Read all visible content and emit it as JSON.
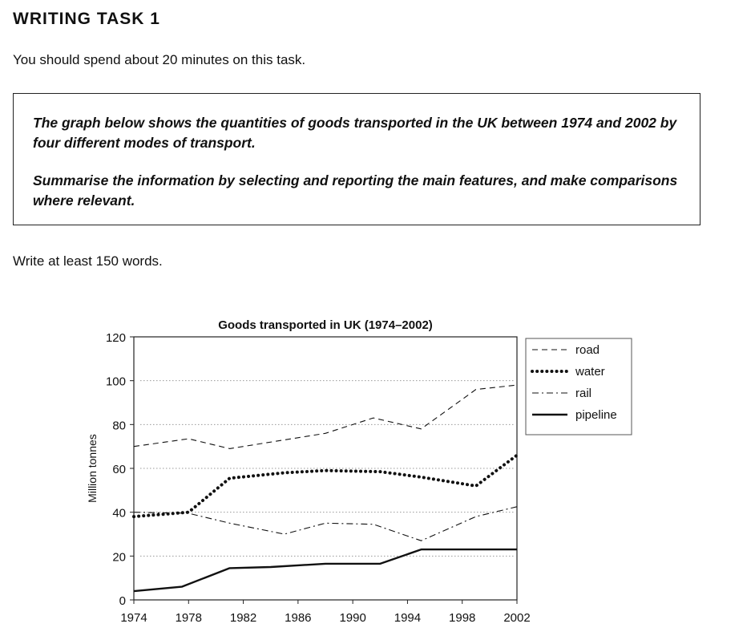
{
  "page": {
    "heading": "WRITING TASK 1",
    "instruction": "You should spend about 20 minutes on this task.",
    "task_paragraph_1": "The graph below shows the quantities of goods transported in the UK between 1974 and 2002 by four different modes of transport.",
    "task_paragraph_2": "Summarise the information by selecting and reporting the main features, and make comparisons where relevant.",
    "word_count": "Write at least 150 words."
  },
  "chart_data": {
    "type": "line",
    "title": "Goods transported in UK (1974–2002)",
    "ylabel": "Million tonnes",
    "xlabel": "",
    "x_ticks": [
      1974,
      1978,
      1982,
      1986,
      1990,
      1994,
      1998,
      2002
    ],
    "y_ticks": [
      0,
      20,
      40,
      60,
      80,
      100,
      120
    ],
    "xlim": [
      1974,
      2002
    ],
    "ylim": [
      0,
      120
    ],
    "grid": "horizontal dotted",
    "legend_position": "right",
    "series": [
      {
        "name": "road",
        "style": "dashed",
        "points": [
          [
            1974,
            70
          ],
          [
            1978,
            73.5
          ],
          [
            1981,
            69
          ],
          [
            1985,
            73
          ],
          [
            1988,
            76
          ],
          [
            1991.5,
            83
          ],
          [
            1995,
            78
          ],
          [
            1999,
            96
          ],
          [
            2002,
            98
          ]
        ]
      },
      {
        "name": "water",
        "style": "dotted",
        "points": [
          [
            1974,
            38
          ],
          [
            1978,
            40
          ],
          [
            1981,
            55.5
          ],
          [
            1985,
            58
          ],
          [
            1988,
            59
          ],
          [
            1992,
            58.5
          ],
          [
            1995,
            56
          ],
          [
            1999,
            52
          ],
          [
            2002,
            66
          ]
        ]
      },
      {
        "name": "rail",
        "style": "dashdot",
        "points": [
          [
            1974,
            40
          ],
          [
            1978,
            39.5
          ],
          [
            1981,
            35
          ],
          [
            1985,
            30
          ],
          [
            1988,
            35
          ],
          [
            1991.5,
            34.5
          ],
          [
            1995,
            27
          ],
          [
            1999,
            38
          ],
          [
            2002,
            42.5
          ]
        ]
      },
      {
        "name": "pipeline",
        "style": "solid",
        "points": [
          [
            1974,
            4
          ],
          [
            1977.5,
            6
          ],
          [
            1981,
            14.5
          ],
          [
            1984,
            15
          ],
          [
            1988,
            16.5
          ],
          [
            1992,
            16.5
          ],
          [
            1995,
            23
          ],
          [
            2002,
            23
          ]
        ]
      }
    ]
  }
}
